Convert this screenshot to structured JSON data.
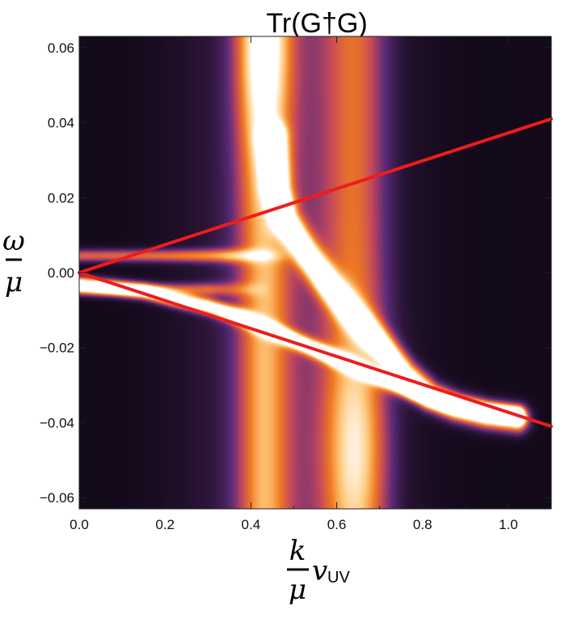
{
  "chart_data": {
    "type": "heatmap",
    "title": "Tr(G†G)",
    "xlabel": {
      "numerator": "k",
      "denominator": "μ",
      "factor": "v",
      "factor_sub": "UV"
    },
    "ylabel": {
      "numerator": "ω",
      "denominator": "μ"
    },
    "xlim": [
      0.0,
      1.1
    ],
    "ylim": [
      -0.063,
      0.063
    ],
    "x_ticks": [
      {
        "value": 0.0,
        "label": "0.0"
      },
      {
        "value": 0.2,
        "label": "0.2"
      },
      {
        "value": 0.4,
        "label": "0.4"
      },
      {
        "value": 0.6,
        "label": "0.6"
      },
      {
        "value": 0.8,
        "label": "0.8"
      },
      {
        "value": 1.0,
        "label": "1.0"
      }
    ],
    "y_ticks": [
      {
        "value": 0.06,
        "label": "0.06"
      },
      {
        "value": 0.04,
        "label": "0.04"
      },
      {
        "value": 0.02,
        "label": "0.02"
      },
      {
        "value": 0.0,
        "label": "0.00"
      },
      {
        "value": -0.02,
        "label": "−0.02"
      },
      {
        "value": -0.04,
        "label": "−0.04"
      },
      {
        "value": -0.06,
        "label": "−0.06"
      }
    ],
    "colormap": [
      "#0b0610",
      "#2a1436",
      "#5b2b78",
      "#c0465e",
      "#f07a22",
      "#ffc77a",
      "#ffffff"
    ],
    "lines": [
      {
        "color": "#ee1c1c",
        "points": [
          [
            0.0,
            0.0
          ],
          [
            1.1,
            0.041
          ]
        ]
      },
      {
        "color": "#ee1c1c",
        "points": [
          [
            0.0,
            0.0
          ],
          [
            1.1,
            -0.041
          ]
        ]
      }
    ],
    "features": [
      {
        "kind": "vertical-band",
        "k_center": 0.43,
        "k_width": 0.06,
        "omega_center": 0.06,
        "omega_spread": 0.028,
        "intensity": 0.9
      },
      {
        "kind": "vertical-band",
        "k_center": 0.645,
        "k_width": 0.075,
        "omega_center": -0.047,
        "omega_spread": 0.03,
        "intensity": 0.72
      },
      {
        "kind": "background-band",
        "k_center": 0.5,
        "k_width": 0.22,
        "intensity": 0.3
      },
      {
        "kind": "peak-curve",
        "points": [
          [
            0.45,
            0.036
          ],
          [
            0.46,
            0.022
          ],
          [
            0.48,
            0.014
          ],
          [
            0.53,
            0.005
          ],
          [
            0.58,
            -0.003
          ],
          [
            0.63,
            -0.01
          ],
          [
            0.7,
            -0.019
          ],
          [
            0.76,
            -0.027
          ],
          [
            0.82,
            -0.033
          ],
          [
            0.88,
            -0.036
          ],
          [
            0.95,
            -0.038
          ],
          [
            1.02,
            -0.039
          ]
        ],
        "width": 0.028,
        "intensity": 1.15
      },
      {
        "kind": "peak-curve",
        "points": [
          [
            0.0,
            -0.003
          ],
          [
            0.08,
            -0.004
          ],
          [
            0.15,
            -0.005
          ],
          [
            0.22,
            -0.007
          ],
          [
            0.3,
            -0.009
          ],
          [
            0.38,
            -0.012
          ],
          [
            0.46,
            -0.016
          ],
          [
            0.54,
            -0.02
          ],
          [
            0.62,
            -0.024
          ],
          [
            0.7,
            -0.028
          ],
          [
            0.78,
            -0.032
          ],
          [
            0.86,
            -0.035
          ],
          [
            0.95,
            -0.037
          ],
          [
            1.02,
            -0.038
          ]
        ],
        "width": 0.016,
        "intensity": 1.1
      },
      {
        "kind": "horizontal-streak",
        "omega": 0.0045,
        "k_range": [
          0.0,
          0.35
        ],
        "intensity": 0.55
      },
      {
        "kind": "horizontal-streak",
        "omega": -0.0045,
        "k_range": [
          0.0,
          0.3
        ],
        "intensity": 0.45
      }
    ]
  }
}
